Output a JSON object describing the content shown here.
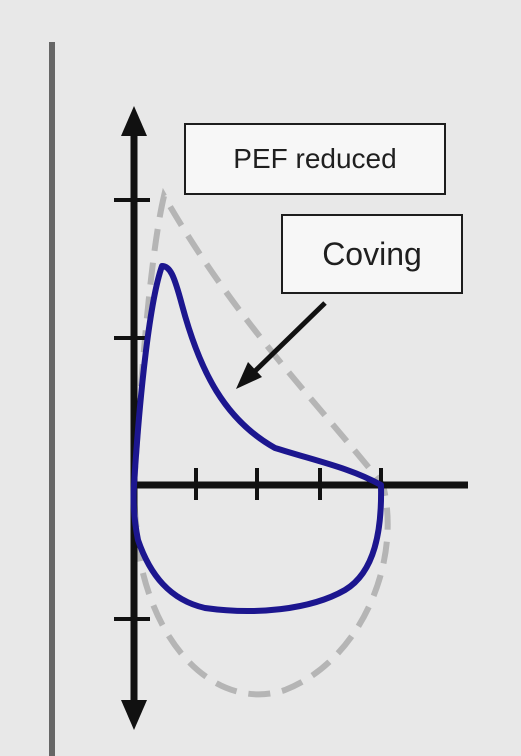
{
  "labels": {
    "pef_reduced": "PEF reduced",
    "coving": "Coving"
  },
  "colors": {
    "background": "#e8e8e8",
    "axis": "#111111",
    "divider": "#666666",
    "normal_curve": "#b5b5b5",
    "abnormal_curve": "#1c168f",
    "arrow": "#111111"
  }
}
